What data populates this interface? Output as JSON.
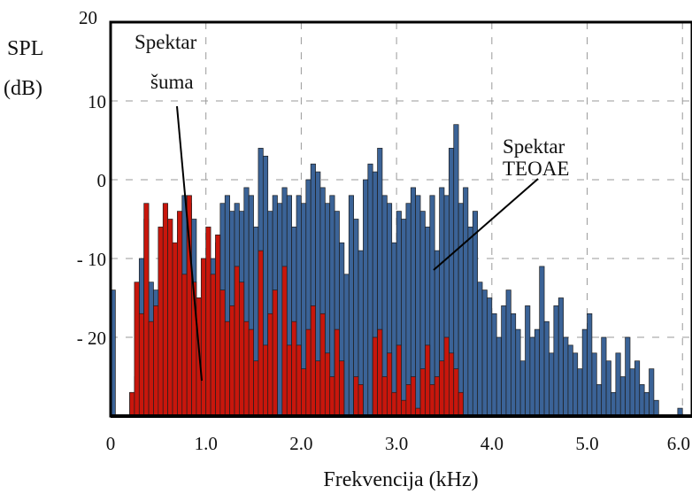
{
  "chart_data": {
    "type": "bar",
    "title": "",
    "xlabel": "Frekvencija (kHz)",
    "ylabel_line1": "SPL",
    "ylabel_line2": "(dB)",
    "x_ticks": [
      "0",
      "1.0",
      "2.0",
      "3.0",
      "4.0",
      "5.0",
      "6.0"
    ],
    "y_ticks": [
      {
        "value": 20,
        "label": "20"
      },
      {
        "value": 10,
        "label": "10"
      },
      {
        "value": 0,
        "label": "0"
      },
      {
        "value": -10,
        "label": "- 10"
      },
      {
        "value": -20,
        "label": "- 20"
      }
    ],
    "xlim": [
      0,
      6.1
    ],
    "ylim": [
      -30,
      20
    ],
    "grid": true,
    "annotations": [
      {
        "lines": [
          "Spektar",
          "šuma"
        ],
        "target_x": 1.15,
        "target_y": -25
      },
      {
        "lines": [
          "Spektar",
          "TEOAE"
        ],
        "target_x": 4.0,
        "target_y": -11
      }
    ],
    "series": [
      {
        "color": "#3b6397",
        "x": [
          0.0,
          0.05,
          0.1,
          0.15,
          0.2,
          0.25,
          0.3,
          0.35,
          0.4,
          0.45,
          0.5,
          0.55,
          0.6,
          0.65,
          0.7,
          0.75,
          0.8,
          0.85,
          0.9,
          0.95,
          1.0,
          1.05,
          1.1,
          1.15,
          1.2,
          1.25,
          1.3,
          1.35,
          1.4,
          1.45,
          1.5,
          1.55,
          1.6,
          1.65,
          1.7,
          1.75,
          1.8,
          1.85,
          1.9,
          1.95,
          2.0,
          2.05,
          2.1,
          2.15,
          2.2,
          2.25,
          2.3,
          2.35,
          2.4,
          2.45,
          2.5,
          2.55,
          2.6,
          2.65,
          2.7,
          2.75,
          2.8,
          2.85,
          2.9,
          2.95,
          3.0,
          3.05,
          3.1,
          3.15,
          3.2,
          3.25,
          3.3,
          3.35,
          3.4,
          3.45,
          3.5,
          3.55,
          3.6,
          3.65,
          3.7,
          3.75,
          3.8,
          3.85,
          3.9,
          3.95,
          4.0,
          4.05,
          4.1,
          4.15,
          4.2,
          4.25,
          4.3,
          4.35,
          4.4,
          4.45,
          4.5,
          4.55,
          4.6,
          4.65,
          4.7,
          4.75,
          4.8,
          4.85,
          4.9,
          4.95,
          5.0,
          5.05,
          5.1,
          5.15,
          5.2,
          5.25,
          5.3,
          5.35,
          5.4,
          5.45,
          5.5,
          5.55,
          5.6,
          5.65,
          5.7,
          5.75,
          5.8,
          5.85,
          5.9,
          5.95,
          6.0,
          6.05
        ],
        "values": [
          -14,
          -30,
          -30,
          -30,
          -27,
          -25,
          -10,
          -5,
          -13,
          -14,
          -17,
          -13,
          -12,
          -9,
          -7,
          -2,
          -3,
          -5,
          -15,
          -14,
          -13,
          -10,
          -8,
          -3,
          -2,
          -4,
          -3,
          -4,
          -1,
          -2,
          -6,
          4,
          3,
          -4,
          -2,
          -3,
          -1,
          -2,
          -6,
          -2,
          -3,
          0,
          2,
          1,
          -1,
          -3,
          -2,
          -4,
          -8,
          -12,
          -2,
          -5,
          -9,
          0,
          2,
          1,
          4,
          -2,
          -3,
          -8,
          -4,
          -5,
          -3,
          -1,
          -2,
          -4,
          -6,
          -2,
          -9,
          -1,
          -2,
          4,
          7,
          -3,
          -1,
          -6,
          -4,
          -13,
          -14,
          -15,
          -17,
          -20,
          -16,
          -14,
          -17,
          -19,
          -23,
          -16,
          -20,
          -19,
          -11,
          -18,
          -22,
          -16,
          -15,
          -20,
          -21,
          -22,
          -24,
          -19,
          -17,
          -22,
          -26,
          -20,
          -23,
          -27,
          -22,
          -25,
          -20,
          -24,
          -23,
          -26,
          -27,
          -24,
          -28,
          -30,
          -30,
          -30,
          -30,
          -29,
          -30,
          -30
        ]
      },
      {
        "color": "#c8160c",
        "x": [
          0.0,
          0.05,
          0.1,
          0.15,
          0.2,
          0.25,
          0.3,
          0.35,
          0.4,
          0.45,
          0.5,
          0.55,
          0.6,
          0.65,
          0.7,
          0.75,
          0.8,
          0.85,
          0.9,
          0.95,
          1.0,
          1.05,
          1.1,
          1.15,
          1.2,
          1.25,
          1.3,
          1.35,
          1.4,
          1.45,
          1.5,
          1.55,
          1.6,
          1.65,
          1.7,
          1.75,
          1.8,
          1.85,
          1.9,
          1.95,
          2.0,
          2.05,
          2.1,
          2.15,
          2.2,
          2.25,
          2.3,
          2.35,
          2.4,
          2.45,
          2.5,
          2.55,
          2.6,
          2.65,
          2.7,
          2.75,
          2.8,
          2.85,
          2.9,
          2.95,
          3.0,
          3.05,
          3.1,
          3.15,
          3.2,
          3.25,
          3.3,
          3.35,
          3.4,
          3.45,
          3.5,
          3.55,
          3.6,
          3.65,
          3.7,
          3.75,
          3.8,
          3.85,
          3.9,
          3.95,
          4.0,
          4.05,
          4.1,
          4.15,
          4.2,
          4.25,
          4.3,
          4.35,
          4.4,
          4.45,
          4.5,
          4.55,
          4.6,
          4.65,
          4.7,
          4.75,
          4.8,
          4.85,
          4.9,
          4.95,
          5.0,
          5.05,
          5.1,
          5.15,
          5.2,
          5.25,
          5.3,
          5.35,
          5.4,
          5.45,
          5.5,
          5.55,
          5.6,
          5.65,
          5.7,
          5.75,
          5.8,
          5.85,
          5.9,
          5.95,
          6.0,
          6.05
        ],
        "values": [
          -30,
          -30,
          -30,
          -30,
          -27,
          -13,
          -17,
          -3,
          -18,
          -16,
          -6,
          -3,
          -5,
          -8,
          -4,
          -12,
          -2,
          -13,
          -15,
          -10,
          -6,
          -12,
          -7,
          -14,
          -18,
          -16,
          -11,
          -13,
          -18,
          -19,
          -23,
          -9,
          -21,
          -17,
          -14,
          -30,
          -11,
          -21,
          -18,
          -21,
          -24,
          -19,
          -16,
          -23,
          -17,
          -22,
          -25,
          -19,
          -23,
          -30,
          -30,
          -25,
          -26,
          -30,
          -30,
          -20,
          -19,
          -25,
          -22,
          -27,
          -21,
          -28,
          -26,
          -25,
          -29,
          -24,
          -21,
          -26,
          -25,
          -23,
          -20,
          -22,
          -24,
          -27,
          -30,
          -30,
          -30,
          -30,
          -30,
          -30,
          -30,
          -30,
          -30,
          -30,
          -30,
          -30,
          -30,
          -30,
          -30,
          -30,
          -30,
          -30,
          -30,
          -30,
          -30,
          -30,
          -30,
          -30,
          -30,
          -30,
          -30,
          -30,
          -30,
          -30,
          -30,
          -30,
          -30,
          -30,
          -30,
          -30,
          -30,
          -30,
          -30,
          -30,
          -30,
          -30,
          -30,
          -30,
          -30,
          -30,
          -30,
          -30
        ]
      }
    ]
  }
}
